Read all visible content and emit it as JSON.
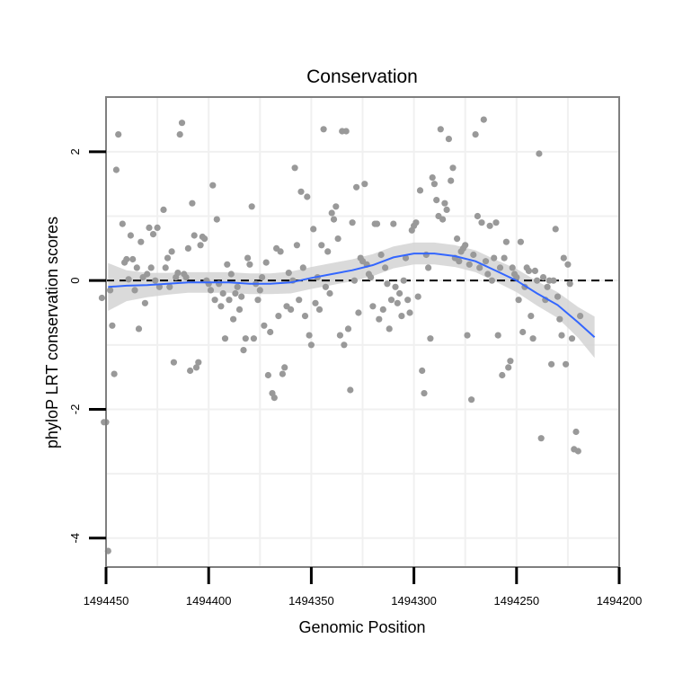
{
  "chart_data": {
    "type": "scatter",
    "title": "Conservation",
    "xlabel": "Genomic Position",
    "ylabel": "phyloP LRT conservation scores",
    "xlim": [
      1494450,
      1494200
    ],
    "ylim": [
      -4.45,
      2.85
    ],
    "x_ticks": [
      1494450,
      1494400,
      1494350,
      1494300,
      1494250,
      1494200
    ],
    "x_tick_labels": [
      "1494450",
      "1494400",
      "1494350",
      "1494300",
      "1494250",
      "1494200"
    ],
    "y_ticks": [
      2,
      0,
      -2,
      -4
    ],
    "y_tick_labels": [
      "2",
      "0",
      "-2",
      "-4"
    ],
    "reference_line": {
      "y": 0,
      "style": "dashed"
    },
    "colors": {
      "points": "#999999",
      "smooth": "#3366FF",
      "ribbon": "#D3D3D3",
      "reference": "#000000"
    },
    "points": [
      [
        1494452,
        -0.27
      ],
      [
        1494451,
        -2.2
      ],
      [
        1494450,
        -2.2
      ],
      [
        1494449,
        -4.2
      ],
      [
        1494448,
        -0.15
      ],
      [
        1494447,
        -0.7
      ],
      [
        1494446,
        -1.45
      ],
      [
        1494445,
        1.72
      ],
      [
        1494444,
        2.27
      ],
      [
        1494442,
        0.88
      ],
      [
        1494441,
        0.28
      ],
      [
        1494440,
        0.33
      ],
      [
        1494439,
        0.02
      ],
      [
        1494438,
        0.7
      ],
      [
        1494437,
        0.33
      ],
      [
        1494436,
        -0.15
      ],
      [
        1494435,
        0.2
      ],
      [
        1494434,
        -0.75
      ],
      [
        1494433,
        0.6
      ],
      [
        1494432,
        0.05
      ],
      [
        1494431,
        -0.35
      ],
      [
        1494430,
        0.1
      ],
      [
        1494429,
        0.82
      ],
      [
        1494428,
        0.2
      ],
      [
        1494427,
        0.72
      ],
      [
        1494426,
        0.0
      ],
      [
        1494425,
        0.82
      ],
      [
        1494424,
        -0.1
      ],
      [
        1494422,
        1.1
      ],
      [
        1494421,
        0.2
      ],
      [
        1494420,
        0.35
      ],
      [
        1494419,
        -0.1
      ],
      [
        1494418,
        0.45
      ],
      [
        1494417,
        -1.27
      ],
      [
        1494416,
        0.05
      ],
      [
        1494415,
        0.12
      ],
      [
        1494414,
        2.27
      ],
      [
        1494413,
        2.45
      ],
      [
        1494412,
        0.1
      ],
      [
        1494411,
        0.05
      ],
      [
        1494410,
        0.5
      ],
      [
        1494409,
        -1.4
      ],
      [
        1494408,
        1.2
      ],
      [
        1494407,
        0.7
      ],
      [
        1494406,
        -1.35
      ],
      [
        1494405,
        -1.27
      ],
      [
        1494404,
        0.55
      ],
      [
        1494403,
        0.68
      ],
      [
        1494402,
        0.65
      ],
      [
        1494401,
        0.0
      ],
      [
        1494400,
        -0.05
      ],
      [
        1494399,
        -0.15
      ],
      [
        1494398,
        1.48
      ],
      [
        1494397,
        -0.3
      ],
      [
        1494396,
        0.95
      ],
      [
        1494395,
        -0.05
      ],
      [
        1494394,
        -0.4
      ],
      [
        1494393,
        -0.2
      ],
      [
        1494392,
        -0.9
      ],
      [
        1494391,
        0.25
      ],
      [
        1494390,
        -0.3
      ],
      [
        1494389,
        0.1
      ],
      [
        1494388,
        -0.6
      ],
      [
        1494387,
        -0.2
      ],
      [
        1494386,
        -0.1
      ],
      [
        1494385,
        -0.45
      ],
      [
        1494384,
        -0.25
      ],
      [
        1494383,
        -1.08
      ],
      [
        1494382,
        -0.9
      ],
      [
        1494381,
        0.35
      ],
      [
        1494380,
        0.25
      ],
      [
        1494379,
        1.15
      ],
      [
        1494378,
        -0.9
      ],
      [
        1494377,
        -0.05
      ],
      [
        1494376,
        -0.3
      ],
      [
        1494375,
        -0.15
      ],
      [
        1494374,
        0.05
      ],
      [
        1494373,
        -0.7
      ],
      [
        1494372,
        0.28
      ],
      [
        1494371,
        -1.47
      ],
      [
        1494370,
        -0.8
      ],
      [
        1494369,
        -1.75
      ],
      [
        1494368,
        -1.82
      ],
      [
        1494367,
        0.5
      ],
      [
        1494366,
        -0.55
      ],
      [
        1494365,
        0.45
      ],
      [
        1494364,
        -1.45
      ],
      [
        1494363,
        -1.35
      ],
      [
        1494362,
        -0.4
      ],
      [
        1494361,
        0.12
      ],
      [
        1494360,
        -0.45
      ],
      [
        1494359,
        0.0
      ],
      [
        1494358,
        1.75
      ],
      [
        1494357,
        0.55
      ],
      [
        1494356,
        -0.3
      ],
      [
        1494355,
        1.38
      ],
      [
        1494354,
        0.2
      ],
      [
        1494353,
        -0.55
      ],
      [
        1494352,
        1.3
      ],
      [
        1494351,
        -0.85
      ],
      [
        1494350,
        -1.0
      ],
      [
        1494349,
        0.8
      ],
      [
        1494348,
        -0.35
      ],
      [
        1494347,
        0.05
      ],
      [
        1494346,
        -0.45
      ],
      [
        1494345,
        0.55
      ],
      [
        1494344,
        2.35
      ],
      [
        1494343,
        -0.1
      ],
      [
        1494342,
        0.45
      ],
      [
        1494341,
        -0.2
      ],
      [
        1494340,
        1.05
      ],
      [
        1494339,
        0.95
      ],
      [
        1494338,
        1.15
      ],
      [
        1494337,
        0.65
      ],
      [
        1494336,
        -0.85
      ],
      [
        1494335,
        2.32
      ],
      [
        1494334,
        -1.0
      ],
      [
        1494333,
        2.32
      ],
      [
        1494332,
        -0.75
      ],
      [
        1494331,
        -1.7
      ],
      [
        1494330,
        0.9
      ],
      [
        1494329,
        0.0
      ],
      [
        1494328,
        1.45
      ],
      [
        1494327,
        -0.5
      ],
      [
        1494326,
        0.35
      ],
      [
        1494325,
        0.3
      ],
      [
        1494324,
        1.5
      ],
      [
        1494323,
        0.25
      ],
      [
        1494322,
        0.1
      ],
      [
        1494321,
        0.05
      ],
      [
        1494320,
        -0.4
      ],
      [
        1494319,
        0.88
      ],
      [
        1494318,
        0.88
      ],
      [
        1494317,
        -0.6
      ],
      [
        1494316,
        0.4
      ],
      [
        1494315,
        -0.45
      ],
      [
        1494314,
        0.2
      ],
      [
        1494313,
        -0.05
      ],
      [
        1494312,
        -0.75
      ],
      [
        1494311,
        -0.3
      ],
      [
        1494310,
        0.88
      ],
      [
        1494309,
        -0.1
      ],
      [
        1494308,
        -0.35
      ],
      [
        1494307,
        -0.2
      ],
      [
        1494306,
        -0.55
      ],
      [
        1494305,
        0.0
      ],
      [
        1494304,
        0.35
      ],
      [
        1494303,
        -0.3
      ],
      [
        1494302,
        -0.5
      ],
      [
        1494301,
        0.78
      ],
      [
        1494300,
        0.85
      ],
      [
        1494299,
        0.9
      ],
      [
        1494298,
        -0.25
      ],
      [
        1494297,
        1.4
      ],
      [
        1494296,
        -1.4
      ],
      [
        1494295,
        -1.75
      ],
      [
        1494294,
        0.4
      ],
      [
        1494293,
        0.2
      ],
      [
        1494292,
        -0.9
      ],
      [
        1494291,
        1.6
      ],
      [
        1494290,
        1.5
      ],
      [
        1494289,
        1.25
      ],
      [
        1494288,
        1.0
      ],
      [
        1494287,
        2.35
      ],
      [
        1494286,
        0.95
      ],
      [
        1494285,
        1.2
      ],
      [
        1494284,
        1.1
      ],
      [
        1494283,
        2.2
      ],
      [
        1494282,
        1.55
      ],
      [
        1494281,
        1.75
      ],
      [
        1494280,
        0.35
      ],
      [
        1494279,
        0.65
      ],
      [
        1494278,
        0.3
      ],
      [
        1494277,
        0.45
      ],
      [
        1494276,
        0.5
      ],
      [
        1494275,
        0.55
      ],
      [
        1494274,
        -0.85
      ],
      [
        1494273,
        0.25
      ],
      [
        1494272,
        -1.85
      ],
      [
        1494271,
        0.4
      ],
      [
        1494270,
        2.27
      ],
      [
        1494269,
        1.0
      ],
      [
        1494268,
        0.2
      ],
      [
        1494267,
        0.9
      ],
      [
        1494266,
        2.5
      ],
      [
        1494265,
        0.3
      ],
      [
        1494264,
        0.1
      ],
      [
        1494263,
        0.85
      ],
      [
        1494262,
        0.0
      ],
      [
        1494261,
        0.35
      ],
      [
        1494260,
        0.9
      ],
      [
        1494259,
        -0.85
      ],
      [
        1494258,
        0.2
      ],
      [
        1494257,
        -1.47
      ],
      [
        1494256,
        0.35
      ],
      [
        1494255,
        0.6
      ],
      [
        1494254,
        -1.35
      ],
      [
        1494253,
        -1.25
      ],
      [
        1494252,
        0.2
      ],
      [
        1494251,
        0.1
      ],
      [
        1494250,
        0.05
      ],
      [
        1494249,
        -0.3
      ],
      [
        1494248,
        0.6
      ],
      [
        1494247,
        -0.8
      ],
      [
        1494246,
        -0.1
      ],
      [
        1494245,
        0.2
      ],
      [
        1494244,
        0.15
      ],
      [
        1494243,
        -0.55
      ],
      [
        1494242,
        -0.9
      ],
      [
        1494241,
        0.15
      ],
      [
        1494240,
        0.0
      ],
      [
        1494239,
        1.97
      ],
      [
        1494238,
        -2.45
      ],
      [
        1494237,
        0.05
      ],
      [
        1494236,
        -0.3
      ],
      [
        1494235,
        -0.1
      ],
      [
        1494234,
        0.0
      ],
      [
        1494233,
        -1.3
      ],
      [
        1494232,
        0.0
      ],
      [
        1494231,
        0.8
      ],
      [
        1494230,
        -0.25
      ],
      [
        1494229,
        -0.6
      ],
      [
        1494228,
        -0.85
      ],
      [
        1494227,
        0.35
      ],
      [
        1494226,
        -1.3
      ],
      [
        1494225,
        0.25
      ],
      [
        1494224,
        -0.05
      ],
      [
        1494223,
        -0.9
      ],
      [
        1494222,
        -2.62
      ],
      [
        1494221,
        -2.35
      ],
      [
        1494220,
        -2.65
      ],
      [
        1494219,
        -0.55
      ]
    ],
    "smooth_curve": [
      [
        1494449,
        -0.1
      ],
      [
        1494440,
        -0.08
      ],
      [
        1494430,
        -0.07
      ],
      [
        1494420,
        -0.05
      ],
      [
        1494410,
        -0.03
      ],
      [
        1494400,
        -0.03
      ],
      [
        1494390,
        -0.03
      ],
      [
        1494380,
        -0.05
      ],
      [
        1494370,
        -0.05
      ],
      [
        1494360,
        -0.03
      ],
      [
        1494350,
        0.04
      ],
      [
        1494340,
        0.1
      ],
      [
        1494330,
        0.16
      ],
      [
        1494320,
        0.24
      ],
      [
        1494310,
        0.36
      ],
      [
        1494300,
        0.42
      ],
      [
        1494290,
        0.42
      ],
      [
        1494280,
        0.38
      ],
      [
        1494270,
        0.3
      ],
      [
        1494260,
        0.15
      ],
      [
        1494250,
        0.0
      ],
      [
        1494240,
        -0.2
      ],
      [
        1494230,
        -0.38
      ],
      [
        1494220,
        -0.65
      ],
      [
        1494212,
        -0.88
      ]
    ],
    "ribbon_halfwidth": [
      0.37,
      0.24,
      0.19,
      0.17,
      0.16,
      0.16,
      0.16,
      0.16,
      0.16,
      0.17,
      0.17,
      0.17,
      0.17,
      0.17,
      0.17,
      0.17,
      0.17,
      0.17,
      0.17,
      0.17,
      0.18,
      0.19,
      0.2,
      0.24,
      0.32
    ]
  }
}
